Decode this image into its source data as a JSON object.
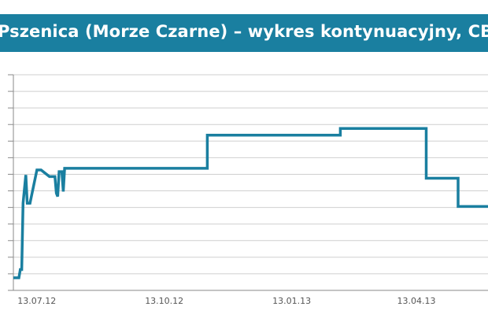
{
  "chart_data": {
    "type": "line",
    "title": "Pszenica (Morze Czarne) – wykres kontynuacyjny, CBOT",
    "xlabel": "",
    "ylabel": "",
    "x_tick_labels": [
      "13.07.12",
      "13.10.12",
      "13.01.13",
      "13.04.13"
    ],
    "x_tick_positions_days": [
      3,
      95,
      187,
      277
    ],
    "y_grid_levels": 13,
    "grid": true,
    "legend": "none",
    "series": [
      {
        "color": "#1a7fa0",
        "x_days": [
          0,
          4,
          5,
          6,
          7,
          9,
          10,
          11,
          12,
          17,
          20,
          26,
          30,
          31,
          32,
          33,
          35,
          36,
          37,
          39,
          140,
          140,
          236,
          236,
          298,
          298,
          321,
          321,
          343
        ],
        "y_level": [
          0,
          0,
          0.5,
          0.5,
          4.5,
          6.2,
          4.5,
          4.5,
          4.5,
          6.5,
          6.5,
          6.1,
          6.1,
          5.1,
          4.9,
          6.4,
          6.4,
          5.2,
          6.6,
          6.6,
          6.6,
          8.6,
          8.6,
          9.0,
          9.0,
          6.0,
          6.0,
          4.3,
          4.3
        ]
      }
    ]
  }
}
